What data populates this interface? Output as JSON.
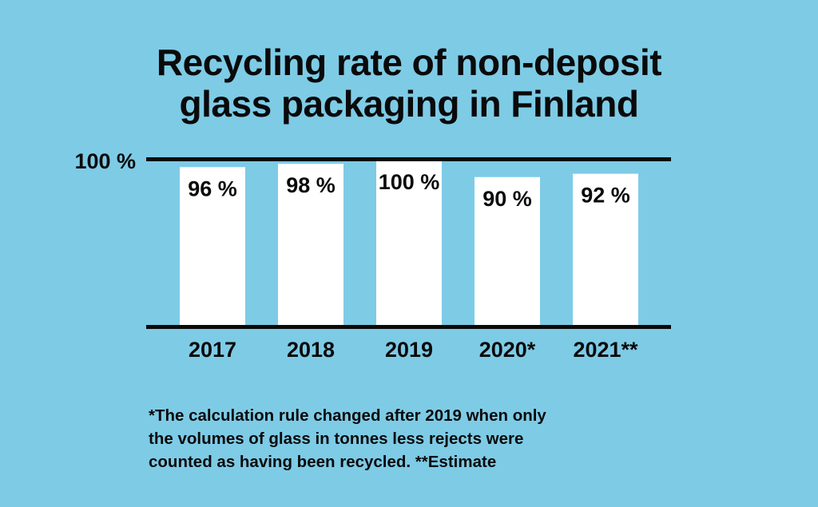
{
  "chart_data": {
    "type": "bar",
    "title": "Recycling rate of non-deposit glass packaging in Finland",
    "title_lines": [
      "Recycling rate of non-deposit",
      "glass packaging in Finland"
    ],
    "categories": [
      "2017",
      "2018",
      "2019",
      "2020*",
      "2021**"
    ],
    "values": [
      96,
      98,
      100,
      90,
      92
    ],
    "value_labels": [
      "96 %",
      "98 %",
      "100 %",
      "90 %",
      "92 %"
    ],
    "ylim": [
      0,
      100
    ],
    "y_tick_label": "100 %",
    "xlabel": "",
    "ylabel": "",
    "grid": false,
    "legend": "none"
  },
  "footnote": {
    "lines": [
      "*The calculation rule changed after 2019 when only",
      "the volumes of glass in tonnes less rejects were",
      "counted as having been recycled. **Estimate"
    ]
  },
  "colors": {
    "background": "#7ecbe6",
    "bar": "#ffffff",
    "text": "#0a0a0a",
    "axis": "#0a0a0a"
  }
}
